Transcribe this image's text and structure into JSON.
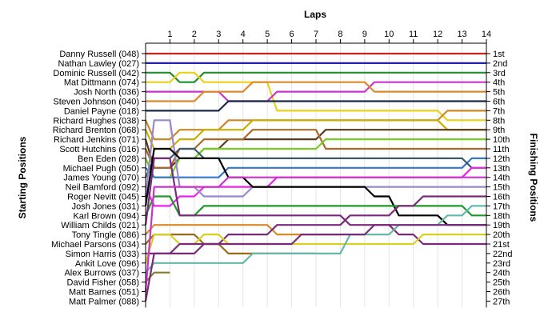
{
  "chart_data": {
    "type": "line",
    "title": "Laps",
    "ylabel_left": "Starting Positions",
    "ylabel_right": "Finishing Positions",
    "x": [
      1,
      2,
      3,
      4,
      5,
      6,
      7,
      8,
      9,
      10,
      11,
      12,
      13,
      14
    ],
    "start_labels": [
      "Danny Russell (048)",
      "Nathan Lawley (027)",
      "Dominic Russell (042)",
      "Mat Dittmann (074)",
      "Josh North (036)",
      "Steven Johnson (040)",
      "Daniel Payne (018)",
      "Richard Hughes (038)",
      "Richard Brenton (068)",
      "Richard Jenkins (071)",
      "Scott Hutchins (016)",
      "Ben Eden (028)",
      "Michael Pugh (050)",
      "James Young (070)",
      "Neil Bamford (092)",
      "Roger Nevitt (045)",
      "Josh Jones (031)",
      "Karl Brown (094)",
      "William Childs (021)",
      "Tony Tingle (086)",
      "Michael Parsons (034)",
      "Simon Harris (033)",
      "Ankit Love (096)",
      "Alex Burrows (037)",
      "David Fisher (058)",
      "Matt Barnes (051)",
      "Matt Palmer (088)"
    ],
    "finish_labels": [
      "1st",
      "2nd",
      "3rd",
      "4th",
      "5th",
      "6th",
      "7th",
      "8th",
      "9th",
      "10th",
      "11th",
      "12th",
      "13th",
      "14th",
      "15th",
      "16th",
      "17th",
      "18th",
      "19th",
      "20th",
      "21st",
      "22nd",
      "23rd",
      "24th",
      "25th",
      "26th",
      "27th"
    ],
    "series": [
      {
        "color": "#cc2222",
        "start": 1,
        "positions": [
          1,
          1,
          1,
          1,
          1,
          1,
          1,
          1,
          1,
          1,
          1,
          1,
          1,
          1
        ]
      },
      {
        "color": "#2222aa",
        "start": 2,
        "positions": [
          2,
          2,
          2,
          2,
          2,
          2,
          2,
          2,
          2,
          2,
          2,
          2,
          2,
          2
        ]
      },
      {
        "color": "#1f8f2f",
        "start": 3,
        "positions": [
          3,
          4,
          3,
          3,
          3,
          3,
          3,
          3,
          3,
          3,
          3,
          3,
          3,
          3
        ]
      },
      {
        "color": "#e8d21a",
        "start": 4,
        "positions": [
          4,
          3,
          4,
          4,
          4,
          7,
          7,
          7,
          7,
          7,
          7,
          7,
          8,
          8
        ]
      },
      {
        "color": "#cc33cc",
        "start": 5,
        "positions": [
          5,
          5,
          5,
          6,
          6,
          5,
          5,
          5,
          5,
          4,
          4,
          4,
          4,
          4
        ]
      },
      {
        "color": "#d98a2b",
        "start": 6,
        "positions": [
          6,
          6,
          5,
          5,
          4,
          4,
          4,
          4,
          4,
          5,
          5,
          5,
          5,
          5
        ]
      },
      {
        "color": "#1a2a4a",
        "start": 7,
        "positions": [
          7,
          7,
          7,
          6,
          6,
          6,
          6,
          6,
          6,
          6,
          6,
          6,
          6,
          6
        ]
      },
      {
        "color": "#cc8822",
        "start": 8,
        "positions": [
          10,
          9,
          9,
          8,
          8,
          8,
          8,
          8,
          8,
          8,
          8,
          8,
          7,
          7
        ]
      },
      {
        "color": "#c8b000",
        "start": 9,
        "positions": [
          11,
          10,
          9,
          9,
          8,
          8,
          8,
          8,
          8,
          8,
          8,
          8,
          9,
          9
        ]
      },
      {
        "color": "#5a3a1a",
        "start": 10,
        "positions": [
          13,
          12,
          11,
          10,
          10,
          10,
          10,
          9,
          9,
          9,
          9,
          9,
          9,
          9
        ]
      },
      {
        "color": "#aa6a2a",
        "start": 11,
        "positions": [
          13,
          11,
          10,
          10,
          9,
          9,
          9,
          11,
          11,
          11,
          11,
          11,
          11,
          11
        ]
      },
      {
        "color": "#77cc22",
        "start": 12,
        "positions": [
          14,
          12,
          11,
          11,
          11,
          11,
          11,
          10,
          10,
          10,
          10,
          10,
          10,
          10
        ]
      },
      {
        "color": "#3377cc",
        "start": 13,
        "positions": [
          14,
          14,
          14,
          13,
          13,
          13,
          13,
          13,
          13,
          13,
          13,
          13,
          13,
          12
        ]
      },
      {
        "color": "#3a5a6a",
        "start": 14,
        "positions": [
          12,
          11,
          12,
          12,
          12,
          12,
          12,
          12,
          12,
          12,
          12,
          12,
          12,
          13
        ]
      },
      {
        "color": "#ee22ee",
        "start": 15,
        "positions": [
          17,
          16,
          15,
          15,
          15,
          14,
          14,
          14,
          14,
          14,
          14,
          14,
          14,
          13
        ]
      },
      {
        "color": "#9a88cc",
        "start": 16,
        "positions": [
          8,
          15,
          16,
          16,
          15,
          15,
          15,
          15,
          15,
          15,
          15,
          15,
          15,
          15
        ]
      },
      {
        "color": "#000000",
        "start": 17,
        "positions": [
          11,
          12,
          12,
          14,
          15,
          15,
          15,
          15,
          15,
          16,
          18,
          18,
          19,
          19
        ]
      },
      {
        "color": "#1f9a2a",
        "start": 18,
        "positions": [
          16,
          18,
          17,
          17,
          17,
          17,
          17,
          17,
          17,
          17,
          17,
          17,
          17,
          18
        ]
      },
      {
        "color": "#7a2a7a",
        "start": 19,
        "positions": [
          12,
          18,
          18,
          18,
          18,
          18,
          18,
          18,
          19,
          19,
          20,
          21,
          21,
          21
        ]
      },
      {
        "color": "#d98a2b",
        "start": 20,
        "positions": [
          19,
          19,
          19,
          19,
          19,
          20,
          20,
          20
        ]
      },
      {
        "color": "#9a6a1a",
        "start": 21,
        "positions": [
          20,
          20,
          21,
          22,
          22,
          22,
          22
        ]
      },
      {
        "color": "#7a2a7a",
        "start": 22,
        "positions": [
          22,
          22,
          21,
          20,
          20,
          19,
          19,
          19,
          18,
          18,
          17,
          16,
          16,
          16
        ]
      },
      {
        "color": "#d8d020",
        "start": 23,
        "positions": [
          20,
          21,
          20,
          21,
          21,
          21,
          21,
          21,
          21,
          21,
          21,
          20,
          20,
          20
        ]
      },
      {
        "color": "#66b8a8",
        "start": 24,
        "positions": [
          23,
          23,
          23,
          23,
          22,
          22,
          22,
          22,
          20,
          20,
          19,
          19,
          18,
          17
        ]
      },
      {
        "color": "#8a7a2a",
        "start": 25,
        "positions": [
          24
        ]
      },
      {
        "color": "#cc33cc",
        "start": 26,
        "positions": [
          15,
          15,
          15,
          14,
          14,
          14,
          14,
          14,
          14,
          14,
          14,
          14,
          14,
          14
        ]
      },
      {
        "color": "#7a2a7a",
        "start": 27,
        "positions": [
          22,
          21,
          21,
          21,
          21,
          21,
          20,
          20,
          20,
          19,
          19,
          19,
          19,
          19
        ]
      }
    ]
  }
}
